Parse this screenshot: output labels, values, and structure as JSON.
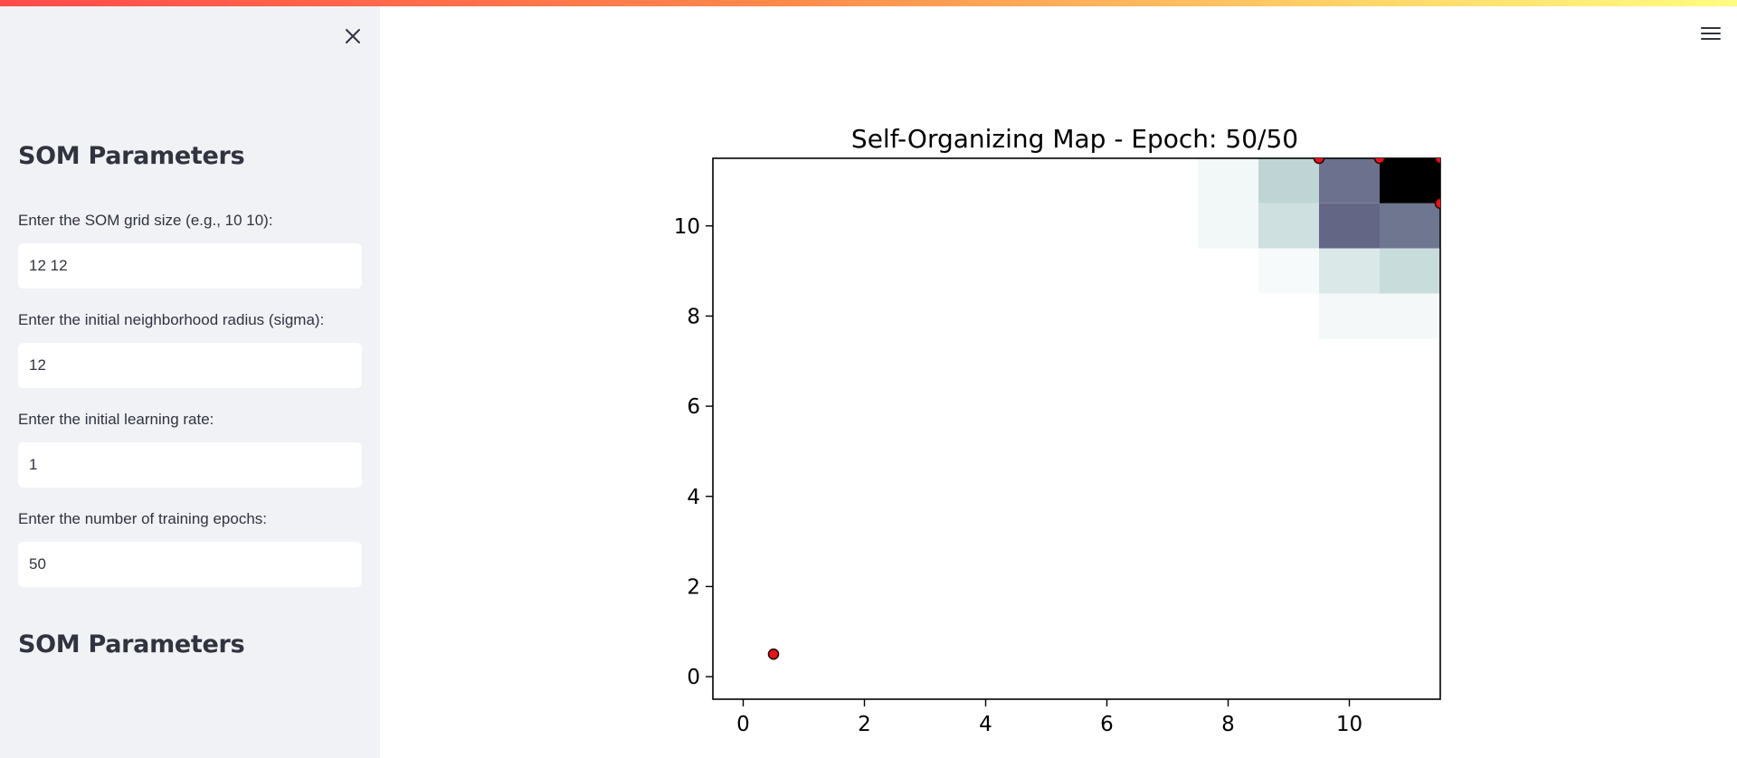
{
  "sidebar": {
    "close_icon": "close-icon",
    "heading": "SOM Parameters",
    "fields": [
      {
        "label": "Enter the SOM grid size (e.g., 10 10):",
        "value": "12 12"
      },
      {
        "label": "Enter the initial neighborhood radius (sigma):",
        "value": "12"
      },
      {
        "label": "Enter the initial learning rate:",
        "value": "1"
      },
      {
        "label": "Enter the number of training epochs:",
        "value": "50"
      }
    ],
    "heading2": "SOM Parameters"
  },
  "header": {
    "menu_icon": "hamburger-menu-icon"
  },
  "chart_data": {
    "type": "heatmap",
    "title": "Self-Organizing Map - Epoch: 50/50",
    "xlim": [
      -0.5,
      11.5
    ],
    "ylim": [
      -0.5,
      11.5
    ],
    "x_ticks": [
      "0",
      "2",
      "4",
      "6",
      "8",
      "10"
    ],
    "y_ticks": [
      "0",
      "2",
      "4",
      "6",
      "8",
      "10"
    ],
    "colormap": "bone_r",
    "cells": [
      {
        "x": 8,
        "y": 11,
        "v": 0.07
      },
      {
        "x": 9,
        "y": 11,
        "v": 0.28
      },
      {
        "x": 10,
        "y": 11,
        "v": 0.62
      },
      {
        "x": 11,
        "y": 11,
        "v": 1.0
      },
      {
        "x": 8,
        "y": 10,
        "v": 0.07
      },
      {
        "x": 9,
        "y": 10,
        "v": 0.22
      },
      {
        "x": 10,
        "y": 10,
        "v": 0.68
      },
      {
        "x": 11,
        "y": 10,
        "v": 0.6
      },
      {
        "x": 9,
        "y": 9,
        "v": 0.05
      },
      {
        "x": 10,
        "y": 9,
        "v": 0.17
      },
      {
        "x": 11,
        "y": 9,
        "v": 0.24
      },
      {
        "x": 10,
        "y": 8,
        "v": 0.06
      },
      {
        "x": 11,
        "y": 8,
        "v": 0.06
      }
    ],
    "points": [
      {
        "x": 0.5,
        "y": 0.5
      },
      {
        "x": 9.5,
        "y": 11.5
      },
      {
        "x": 10.5,
        "y": 11.5
      },
      {
        "x": 11.5,
        "y": 11.5
      },
      {
        "x": 11.5,
        "y": 10.5
      }
    ],
    "point_color": "#e8141b",
    "point_edge": "#2a0a0a"
  }
}
